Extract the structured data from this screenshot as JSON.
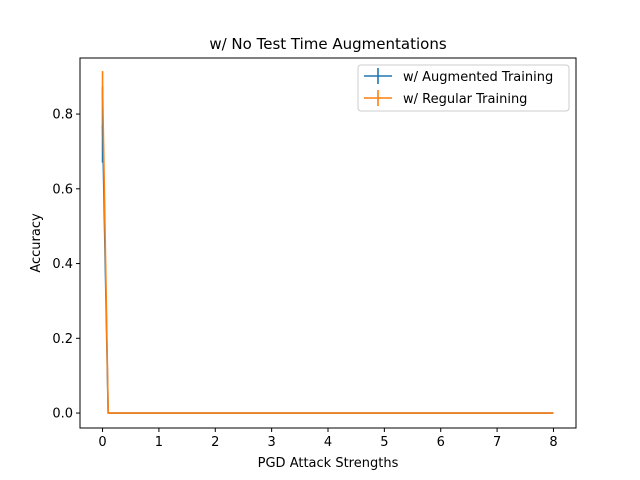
{
  "chart_data": {
    "type": "line",
    "title": "w/ No Test Time Augmentations",
    "xlabel": "PGD Attack Strengths",
    "ylabel": "Accuracy",
    "xlim": [
      -0.4,
      8.4
    ],
    "ylim": [
      -0.04,
      0.95
    ],
    "xticks": [
      "0",
      "1",
      "2",
      "3",
      "4",
      "5",
      "6",
      "7",
      "8"
    ],
    "yticks": [
      "0.0",
      "0.2",
      "0.4",
      "0.6",
      "0.8"
    ],
    "grid": false,
    "legend_position": "top-right",
    "series": [
      {
        "name": "w/ Augmented Training",
        "color": "#1f77b4",
        "x": [
          0,
          0.1,
          8
        ],
        "y": [
          0.77,
          0.0,
          0.0
        ],
        "err": [
          0.1,
          0.0,
          0.0
        ]
      },
      {
        "name": "w/ Regular Training",
        "color": "#ff7f0e",
        "x": [
          0,
          0.1,
          8
        ],
        "y": [
          0.875,
          0.0,
          0.0
        ],
        "err": [
          0.04,
          0.0,
          0.0
        ]
      }
    ]
  }
}
